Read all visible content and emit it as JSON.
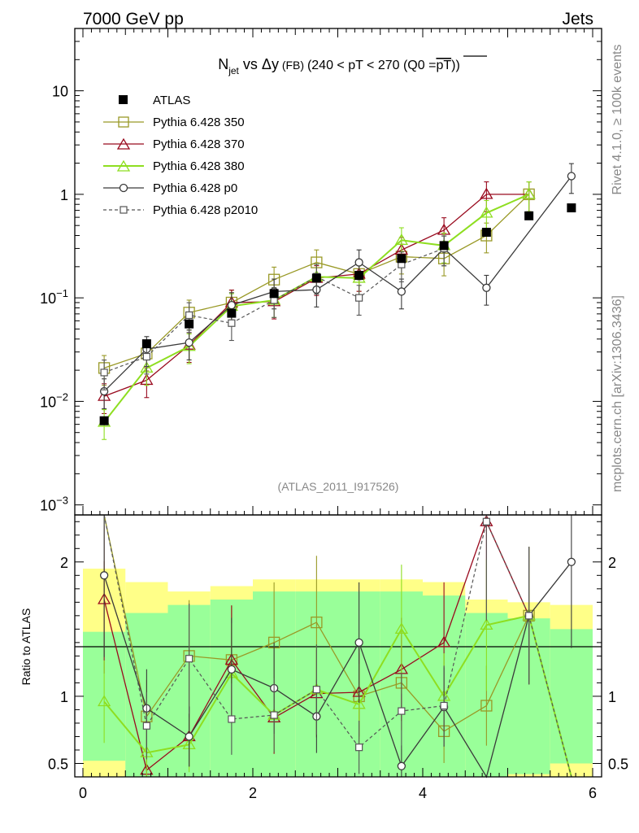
{
  "header": {
    "left": "7000 GeV pp",
    "right": "Jets"
  },
  "side": {
    "rivet": "Rivet 4.1.0, ≥ 100k events",
    "mcplots": "mcplots.cern.ch [arXiv:1306.3436]"
  },
  "title": {
    "n": "N",
    "sub": "jet",
    "vs": " vs ",
    "delta": "Δy",
    "fb": " (FB) ",
    "range": "(240 < pT < 270 (Q0 =",
    "pt": "pT",
    "close": "))"
  },
  "watermark": "(ATLAS_2011_I917526)",
  "colors": {
    "atlas": "#000000",
    "p350": "#999926",
    "p370": "#990a1e",
    "p380": "#8ede20",
    "p0": "#3a3a3a",
    "p2010": "#555555",
    "band_inner": "#99ff99",
    "band_outer": "#ffff88"
  },
  "chart_data": {
    "type": "line",
    "xlim": [
      0,
      6
    ],
    "x_ticks": [
      "0",
      "2",
      "4",
      "6"
    ],
    "x": [
      0.25,
      0.75,
      1.25,
      1.75,
      2.25,
      2.75,
      3.25,
      3.75,
      4.25,
      4.75,
      5.25,
      5.75
    ],
    "main": {
      "yscale": "log",
      "ylim": [
        0.0008,
        40
      ],
      "y_ticks": [
        {
          "v": 0.001,
          "base": "10",
          "exp": "−3"
        },
        {
          "v": 0.01,
          "base": "10",
          "exp": "−2"
        },
        {
          "v": 0.1,
          "base": "10",
          "exp": "−1"
        },
        {
          "v": 1,
          "base": "1",
          "exp": ""
        },
        {
          "v": 10,
          "base": "10",
          "exp": ""
        }
      ]
    },
    "ratio": {
      "ylabel": "Ratio to ATLAS",
      "ylim": [
        0.4,
        2.35
      ],
      "y_ticks": [
        {
          "v": 0.5,
          "label": "0.5"
        },
        {
          "v": 1,
          "label": "1"
        },
        {
          "v": 2,
          "label": "2"
        }
      ],
      "band_inner": [
        0.48,
        0.62,
        0.68,
        0.72,
        0.78,
        0.78,
        0.78,
        0.78,
        0.75,
        0.62,
        0.58,
        0.5
      ],
      "band_outer": [
        0.95,
        0.85,
        0.78,
        0.82,
        0.87,
        0.87,
        0.87,
        0.87,
        0.85,
        0.72,
        0.7,
        0.68
      ]
    },
    "legend": [
      "ATLAS",
      "Pythia 6.428 350",
      "Pythia 6.428 370",
      "Pythia 6.428 380",
      "Pythia 6.428 p0",
      "Pythia 6.428 p2010"
    ],
    "series": [
      {
        "name": "ATLAS",
        "values": [
          0.0065,
          0.036,
          0.056,
          0.071,
          0.11,
          0.155,
          0.165,
          0.24,
          0.32,
          0.43,
          0.62,
          0.74
        ]
      },
      {
        "name": "Pythia 6.428 350",
        "values": [
          0.021,
          0.029,
          0.072,
          0.09,
          0.15,
          0.22,
          0.17,
          0.25,
          0.24,
          0.4,
          1.0,
          null
        ]
      },
      {
        "name": "Pythia 6.428 370",
        "values": [
          0.0112,
          0.016,
          0.035,
          0.09,
          0.092,
          0.155,
          0.17,
          0.29,
          0.45,
          1.0,
          1.0,
          null
        ]
      },
      {
        "name": "Pythia 6.428 380",
        "values": [
          0.0063,
          0.021,
          0.034,
          0.083,
          0.095,
          0.16,
          0.155,
          0.36,
          0.32,
          0.66,
          1.0,
          null
        ]
      },
      {
        "name": "Pythia 6.428 p0",
        "values": [
          0.0125,
          0.032,
          0.037,
          0.085,
          0.115,
          0.12,
          0.22,
          0.115,
          0.3,
          0.125,
          null,
          1.5
        ]
      },
      {
        "name": "Pythia 6.428 p2010",
        "values": [
          0.019,
          0.027,
          0.068,
          0.057,
          0.095,
          0.16,
          0.1,
          0.21,
          0.3,
          null,
          null,
          null
        ]
      }
    ],
    "ratio_series": [
      {
        "name": "Pythia 6.428 350",
        "values": [
          2.6,
          0.85,
          1.3,
          1.27,
          1.4,
          1.55,
          1.0,
          1.1,
          0.74,
          0.93,
          1.6,
          null
        ]
      },
      {
        "name": "Pythia 6.428 370",
        "values": [
          1.72,
          0.45,
          0.7,
          1.27,
          0.84,
          1.02,
          1.03,
          1.2,
          1.4,
          2.3,
          1.6,
          null
        ]
      },
      {
        "name": "Pythia 6.428 380",
        "values": [
          0.96,
          0.58,
          0.64,
          1.17,
          0.86,
          1.05,
          0.94,
          1.5,
          1.0,
          1.53,
          1.6,
          0.2
        ]
      },
      {
        "name": "Pythia 6.428 p0",
        "values": [
          1.9,
          0.91,
          0.7,
          1.2,
          1.06,
          0.85,
          1.4,
          0.48,
          0.92,
          0.2,
          1.6,
          2.0
        ]
      },
      {
        "name": "Pythia 6.428 p2010",
        "values": [
          2.95,
          0.78,
          1.28,
          0.83,
          0.86,
          1.05,
          0.62,
          0.89,
          0.93,
          2.3,
          1.6,
          0.2
        ]
      }
    ]
  }
}
